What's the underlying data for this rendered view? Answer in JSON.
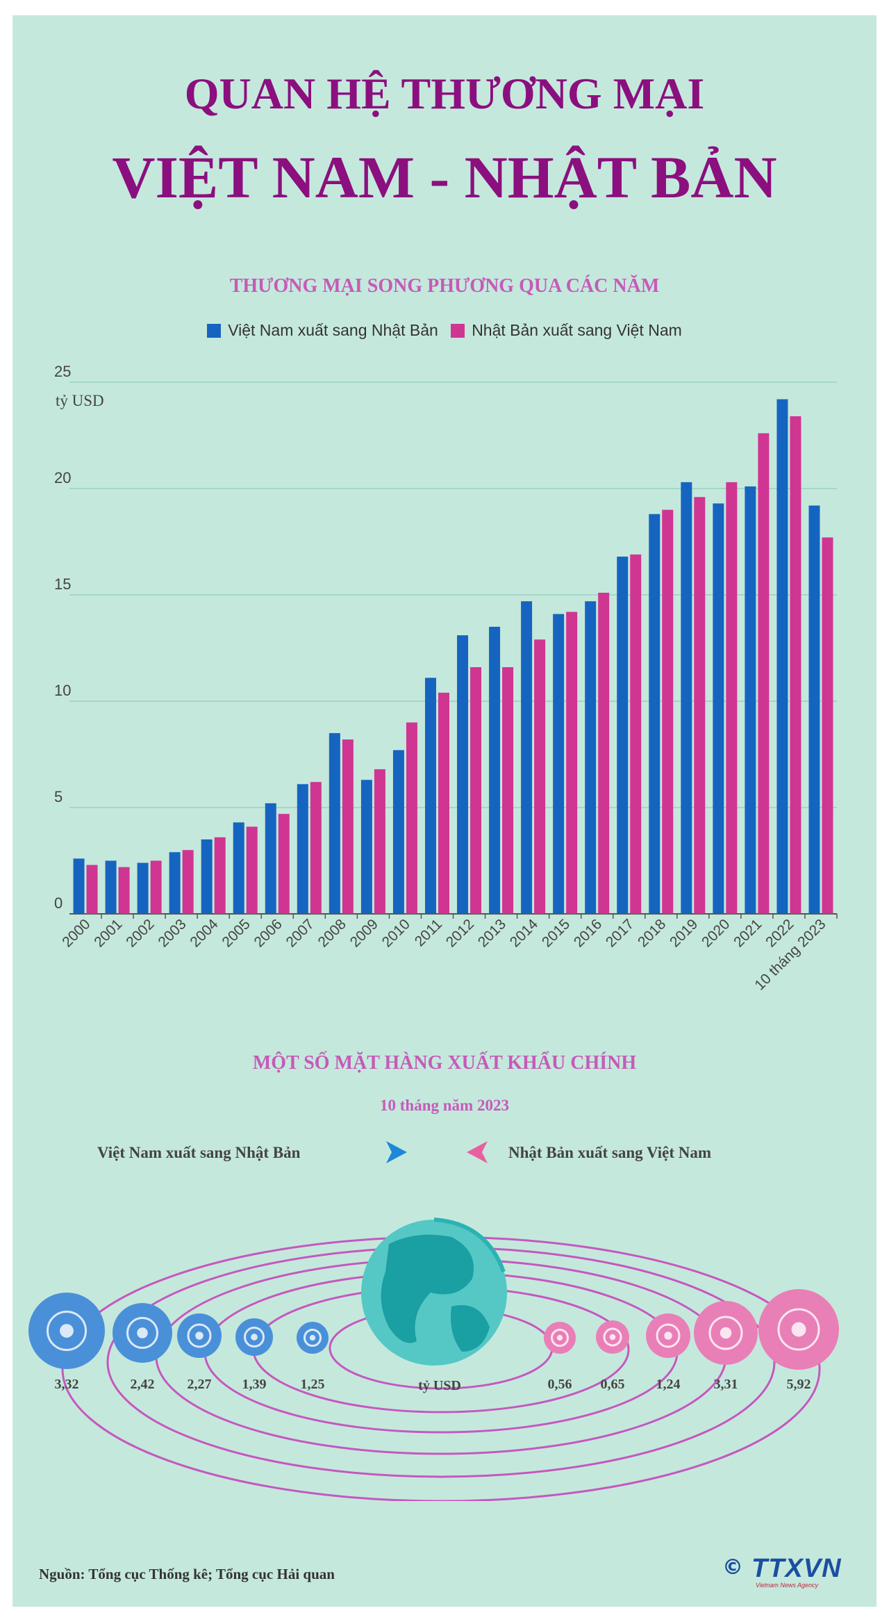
{
  "header": {
    "title_line1": "QUAN HỆ THƯƠNG MẠI",
    "title_line2": "VIỆT NAM - NHẬT BẢN"
  },
  "chart_section": {
    "heading": "THƯƠNG MẠI SONG PHƯƠNG QUA CÁC NĂM"
  },
  "colors": {
    "vn_to_jp": "#1565c0",
    "jp_to_vn": "#d03592",
    "title": "#8b0f7e",
    "subtitle": "#c55bb8",
    "background": "#c5e8dd"
  },
  "chart_data": {
    "type": "bar",
    "title": "THƯƠNG MẠI SONG PHƯƠNG QUA CÁC NĂM",
    "ylabel": "tỷ USD",
    "xlabel": "",
    "ylim": [
      0,
      25
    ],
    "yticks": [
      "0",
      "5",
      "10",
      "15",
      "20",
      "25"
    ],
    "grid": true,
    "legend_position": "top-center",
    "categories": [
      "2000",
      "2001",
      "2002",
      "2003",
      "2004",
      "2005",
      "2006",
      "2007",
      "2008",
      "2009",
      "2010",
      "2011",
      "2012",
      "2013",
      "2014",
      "2015",
      "2016",
      "2017",
      "2018",
      "2019",
      "2020",
      "2021",
      "2022",
      "10 tháng 2023"
    ],
    "series": [
      {
        "name": "Việt Nam xuất sang Nhật Bản",
        "values": [
          2.6,
          2.5,
          2.4,
          2.9,
          3.5,
          4.3,
          5.2,
          6.1,
          8.5,
          6.3,
          7.7,
          11.1,
          13.1,
          13.5,
          14.7,
          14.1,
          14.7,
          16.8,
          18.8,
          20.3,
          19.3,
          20.1,
          24.2,
          19.2
        ]
      },
      {
        "name": "Nhật Bản xuất sang Việt Nam",
        "values": [
          2.3,
          2.2,
          2.5,
          3.0,
          3.6,
          4.1,
          4.7,
          6.2,
          8.2,
          6.8,
          9.0,
          10.4,
          11.6,
          11.6,
          12.9,
          14.2,
          15.1,
          16.9,
          19.0,
          19.6,
          20.3,
          22.6,
          23.4,
          17.7
        ]
      }
    ]
  },
  "export_section": {
    "heading": "MỘT SỐ MẶT HÀNG XUẤT KHẨU CHÍNH",
    "period": "10 tháng năm 2023",
    "vn_label": "Việt Nam xuất sang Nhật Bản",
    "jp_label": "Nhật Bản xuất sang Việt Nam",
    "unit": "tỷ USD",
    "vn_items": [
      {
        "icon": "textile-machine-icon",
        "value": "3,32",
        "num": 3.32
      },
      {
        "icon": "machinery-parts-icon",
        "value": "2,42",
        "num": 2.42
      },
      {
        "icon": "gears-icon",
        "value": "2,27",
        "num": 2.27
      },
      {
        "icon": "wood-icon",
        "value": "1,39",
        "num": 1.39
      },
      {
        "icon": "seafood-icon",
        "value": "1,25",
        "num": 1.25
      }
    ],
    "jp_items": [
      {
        "icon": "steel-coils-icon",
        "value": "0,56",
        "num": 0.56
      },
      {
        "icon": "plastic-icon",
        "value": "0,65",
        "num": 0.65
      },
      {
        "icon": "iron-steel-icon",
        "value": "1,24",
        "num": 1.24
      },
      {
        "icon": "gears-icon",
        "value": "3,31",
        "num": 3.31
      },
      {
        "icon": "computer-icon",
        "value": "5,92",
        "num": 5.92
      }
    ]
  },
  "footer": {
    "source": "Nguồn: Tổng cục Thống kê; Tổng cục Hải quan",
    "logo_text": "TTXVN",
    "logo_sub": "Vietnam News Agency",
    "copyright": "©"
  }
}
